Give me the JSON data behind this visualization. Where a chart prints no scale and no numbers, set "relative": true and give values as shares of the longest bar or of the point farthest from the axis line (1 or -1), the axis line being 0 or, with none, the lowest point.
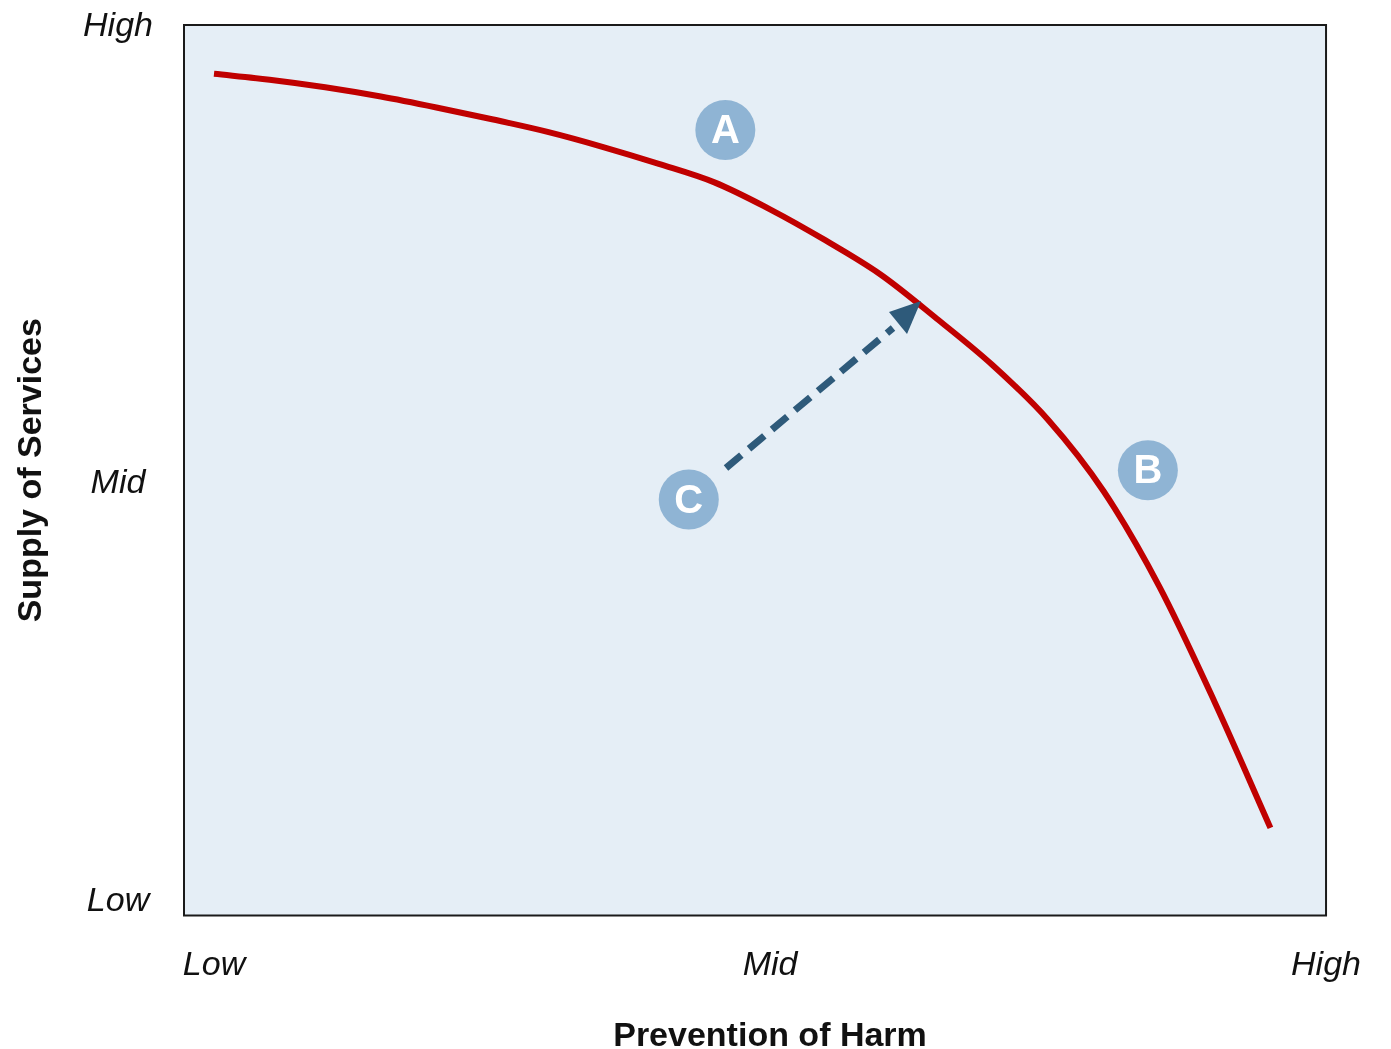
{
  "chart_data": {
    "type": "line",
    "relative": true,
    "xlabel": "Prevention of Harm",
    "ylabel": "Supply of Services",
    "categories": [
      "Low",
      null,
      null,
      null,
      null,
      null,
      null,
      null,
      null,
      null,
      "Mid",
      null,
      null,
      null,
      null,
      null,
      null,
      null,
      null,
      null,
      "High"
    ],
    "values": [
      1,
      0.993,
      0.984,
      0.973,
      0.96,
      0.946,
      0.931,
      0.913,
      0.893,
      0.871,
      0.839,
      0.802,
      0.761,
      0.709,
      0.654,
      0.589,
      0.504,
      0.391,
      0.253,
      0.104,
      null
    ],
    "color": "#c00000",
    "annotations": [
      "Low",
      "Mid",
      "High",
      "A",
      "B",
      "C"
    ]
  }
}
